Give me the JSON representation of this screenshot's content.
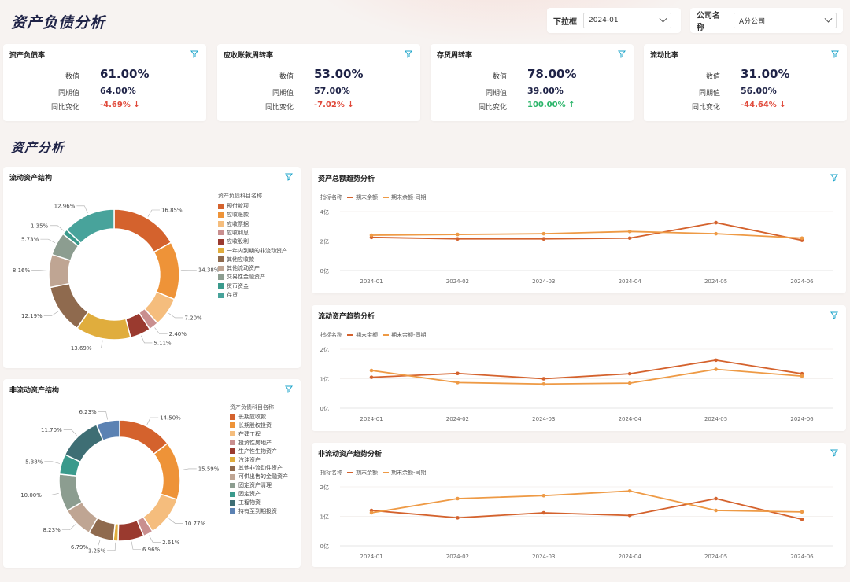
{
  "header": {
    "title": "资产负债分析",
    "dropdown_label": "下拉框",
    "dropdown_value": "2024-01",
    "company_label": "公司名称",
    "company_value": "A分公司"
  },
  "kpis": [
    {
      "title": "资产负债率",
      "value_label": "数值",
      "value": "61.00%",
      "prev_label": "同期值",
      "prev": "64.00%",
      "chg_label": "同比变化",
      "chg": "-4.69%",
      "dir": "down"
    },
    {
      "title": "应收账款周转率",
      "value_label": "数值",
      "value": "53.00%",
      "prev_label": "同期值",
      "prev": "57.00%",
      "chg_label": "同比变化",
      "chg": "-7.02%",
      "dir": "down"
    },
    {
      "title": "存货周转率",
      "value_label": "数值",
      "value": "78.00%",
      "prev_label": "同期值",
      "prev": "39.00%",
      "chg_label": "同比变化",
      "chg": "100.00%",
      "dir": "up"
    },
    {
      "title": "流动比率",
      "value_label": "数值",
      "value": "31.00%",
      "prev_label": "同期值",
      "prev": "56.00%",
      "chg_label": "同比变化",
      "chg": "-44.64%",
      "dir": "down"
    }
  ],
  "section_title": "资产分析",
  "current_assets": {
    "title": "流动资产结构",
    "legend_title": "资产负债科目名称"
  },
  "noncurrent_assets": {
    "title": "非流动资产结构",
    "legend_title": "资产负债科目名称"
  },
  "trends": [
    {
      "title": "资产总额趋势分析",
      "legend_label": "指标名称",
      "s1": "期末余额",
      "s2": "期末余额-同期"
    },
    {
      "title": "流动资产趋势分析",
      "legend_label": "指标名称",
      "s1": "期末余额",
      "s2": "期末余额-同期"
    },
    {
      "title": "非流动资产趋势分析",
      "legend_label": "指标名称",
      "s1": "期末余额",
      "s2": "期末余额-同期"
    }
  ],
  "colors": {
    "current": [
      "#d4622d",
      "#ee9338",
      "#f5bd7d",
      "#c98f8f",
      "#9a3a2f",
      "#e0ad3d",
      "#8f6a4e",
      "#bfa593",
      "#8c9d90",
      "#3a9a8c",
      "#48a39b",
      "#4d7479"
    ],
    "noncurrent": [
      "#d4622d",
      "#ee9338",
      "#f5bd7d",
      "#c98f8f",
      "#9a3a2f",
      "#e0ad3d",
      "#8f6a4e",
      "#bfa593",
      "#8c9d90",
      "#3a9a8c",
      "#3e6e74",
      "#5b82b3"
    ],
    "line1": "#d4622d",
    "line2": "#ee9a45"
  },
  "chart_data": [
    {
      "type": "pie",
      "title": "流动资产结构",
      "legend_title": "资产负债科目名称",
      "categories": [
        "预付款项",
        "应收账款",
        "应收票据",
        "应收利息",
        "应收股利",
        "一年内到期的非流动资产",
        "其他应收款",
        "其他流动资产",
        "交易性金融资产",
        "货币资金",
        "存货"
      ],
      "values": [
        16.85,
        14.38,
        7.2,
        2.4,
        5.11,
        13.69,
        12.19,
        8.16,
        5.73,
        1.35,
        12.96
      ],
      "labels": [
        "16.85%",
        "14.38%",
        "7.20%",
        "2.40%",
        "5.11%",
        "13.69%",
        "12.19%",
        "8.16%",
        "5.73%",
        "1.35%",
        "12.96%"
      ]
    },
    {
      "type": "pie",
      "title": "非流动资产结构",
      "legend_title": "资产负债科目名称",
      "categories": [
        "长期应收款",
        "长期股权投资",
        "在建工程",
        "投资性房地产",
        "生产性生物资产",
        "汽油资产",
        "其他非流动性资产",
        "可供出售的金融资产",
        "固定资产清理",
        "固定资产",
        "工程物资",
        "持有至到期投资"
      ],
      "values": [
        14.5,
        15.59,
        10.77,
        2.61,
        6.96,
        1.25,
        6.79,
        8.23,
        10.0,
        5.38,
        11.7,
        6.23
      ],
      "labels": [
        "14.50%",
        "15.59%",
        "10.77%",
        "2.61%",
        "6.96%",
        "1.25%",
        "6.79%",
        "8.23%",
        "10.00%",
        "5.38%",
        "11.70%",
        "6.23%"
      ]
    },
    {
      "type": "line",
      "title": "资产总额趋势分析",
      "x": [
        "2024-01",
        "2024-02",
        "2024-03",
        "2024-04",
        "2024-05",
        "2024-06"
      ],
      "yticks": [
        "4亿",
        "2亿",
        "0亿"
      ],
      "ylim": [
        0,
        4
      ],
      "series": [
        {
          "name": "期末余额",
          "values": [
            2.25,
            2.15,
            2.15,
            2.2,
            3.25,
            2.05
          ]
        },
        {
          "name": "期末余额-同期",
          "values": [
            2.4,
            2.45,
            2.5,
            2.65,
            2.5,
            2.2
          ]
        }
      ]
    },
    {
      "type": "line",
      "title": "流动资产趋势分析",
      "x": [
        "2024-01",
        "2024-02",
        "2024-03",
        "2024-04",
        "2024-05",
        "2024-06"
      ],
      "yticks": [
        "2亿",
        "1亿",
        "0亿"
      ],
      "ylim": [
        0,
        2
      ],
      "series": [
        {
          "name": "期末余额",
          "values": [
            1.05,
            1.18,
            1.0,
            1.17,
            1.63,
            1.17
          ]
        },
        {
          "name": "期末余额-同期",
          "values": [
            1.28,
            0.87,
            0.82,
            0.85,
            1.32,
            1.09
          ]
        }
      ]
    },
    {
      "type": "line",
      "title": "非流动资产趋势分析",
      "x": [
        "2024-01",
        "2024-02",
        "2024-03",
        "2024-04",
        "2024-05",
        "2024-06"
      ],
      "yticks": [
        "2亿",
        "1亿",
        "0亿"
      ],
      "ylim": [
        0,
        2
      ],
      "series": [
        {
          "name": "期末余额",
          "values": [
            1.2,
            0.95,
            1.12,
            1.03,
            1.6,
            0.9
          ]
        },
        {
          "name": "期末余额-同期",
          "values": [
            1.12,
            1.6,
            1.7,
            1.86,
            1.2,
            1.15
          ]
        }
      ]
    }
  ]
}
